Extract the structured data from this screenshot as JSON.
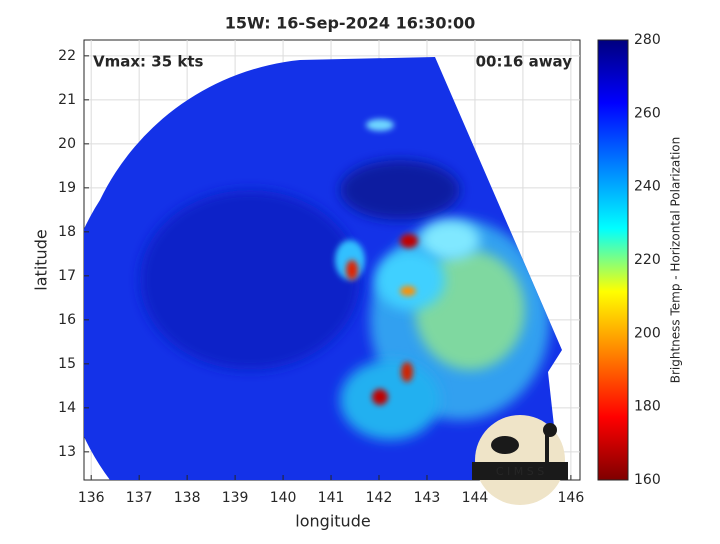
{
  "chart_data": {
    "type": "image",
    "title": "15W: 16-Sep-2024 16:30:00",
    "x_label": "longitude",
    "y_label": "latitude",
    "annotations": [
      "Vmax: 35 kts",
      "00:16 away"
    ],
    "logo_text": "C I M S S",
    "xlim": [
      135.85,
      146.19
    ],
    "xticks": [
      136,
      137,
      138,
      139,
      140,
      141,
      142,
      143,
      144,
      145,
      146
    ],
    "ylim": [
      12.36,
      22.36
    ],
    "yticks": [
      13,
      14,
      15,
      16,
      17,
      18,
      19,
      20,
      21,
      22
    ],
    "grid": true,
    "colorbar": {
      "label": "Brightness Temp - Horizontal Polarization",
      "lim": [
        160,
        280
      ],
      "ticks": [
        160,
        180,
        200,
        220,
        240,
        260,
        280
      ],
      "colors": [
        "#7f0000",
        "#ff0000",
        "#ff8000",
        "#ffff00",
        "#00ffff",
        "#0080ff",
        "#0000ff",
        "#00007f"
      ]
    }
  }
}
